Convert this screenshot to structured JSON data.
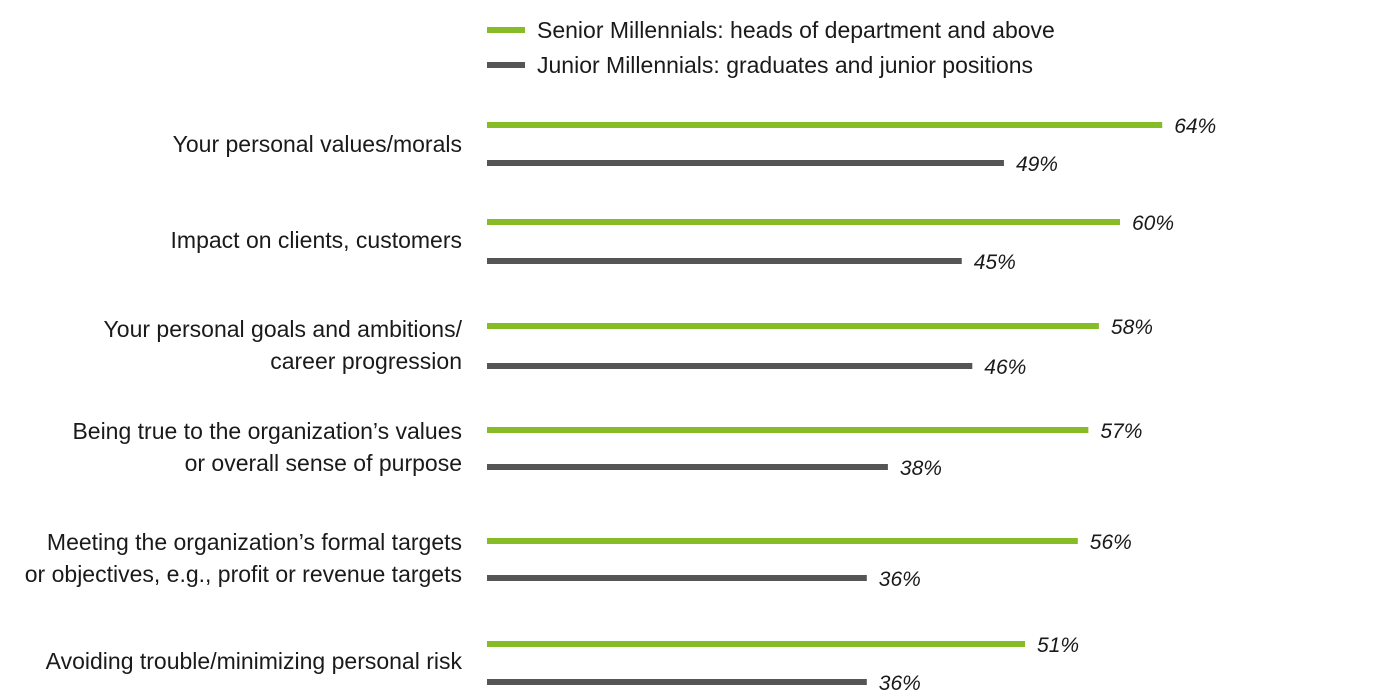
{
  "chart_data": {
    "type": "bar",
    "orientation": "horizontal",
    "title": "",
    "xlabel": "",
    "ylabel": "",
    "value_suffix": "%",
    "xlim": [
      0,
      64
    ],
    "grid": false,
    "legend_position": "top",
    "categories": [
      [
        "Your personal values/morals"
      ],
      [
        "Impact on clients, customers"
      ],
      [
        "Your personal goals and ambitions/",
        "career progression"
      ],
      [
        "Being true to the organization’s values",
        "or overall sense of purpose"
      ],
      [
        "Meeting the organization’s formal targets",
        "or objectives, e.g., profit or revenue targets"
      ],
      [
        "Avoiding trouble/minimizing personal risk"
      ]
    ],
    "series": [
      {
        "name": "Senior Millennials: heads of department and above",
        "color": "#86bc25",
        "values": [
          64,
          60,
          58,
          57,
          56,
          51
        ]
      },
      {
        "name": "Junior Millennials: graduates and junior positions",
        "color": "#555555",
        "values": [
          49,
          45,
          46,
          38,
          36,
          36
        ]
      }
    ]
  }
}
